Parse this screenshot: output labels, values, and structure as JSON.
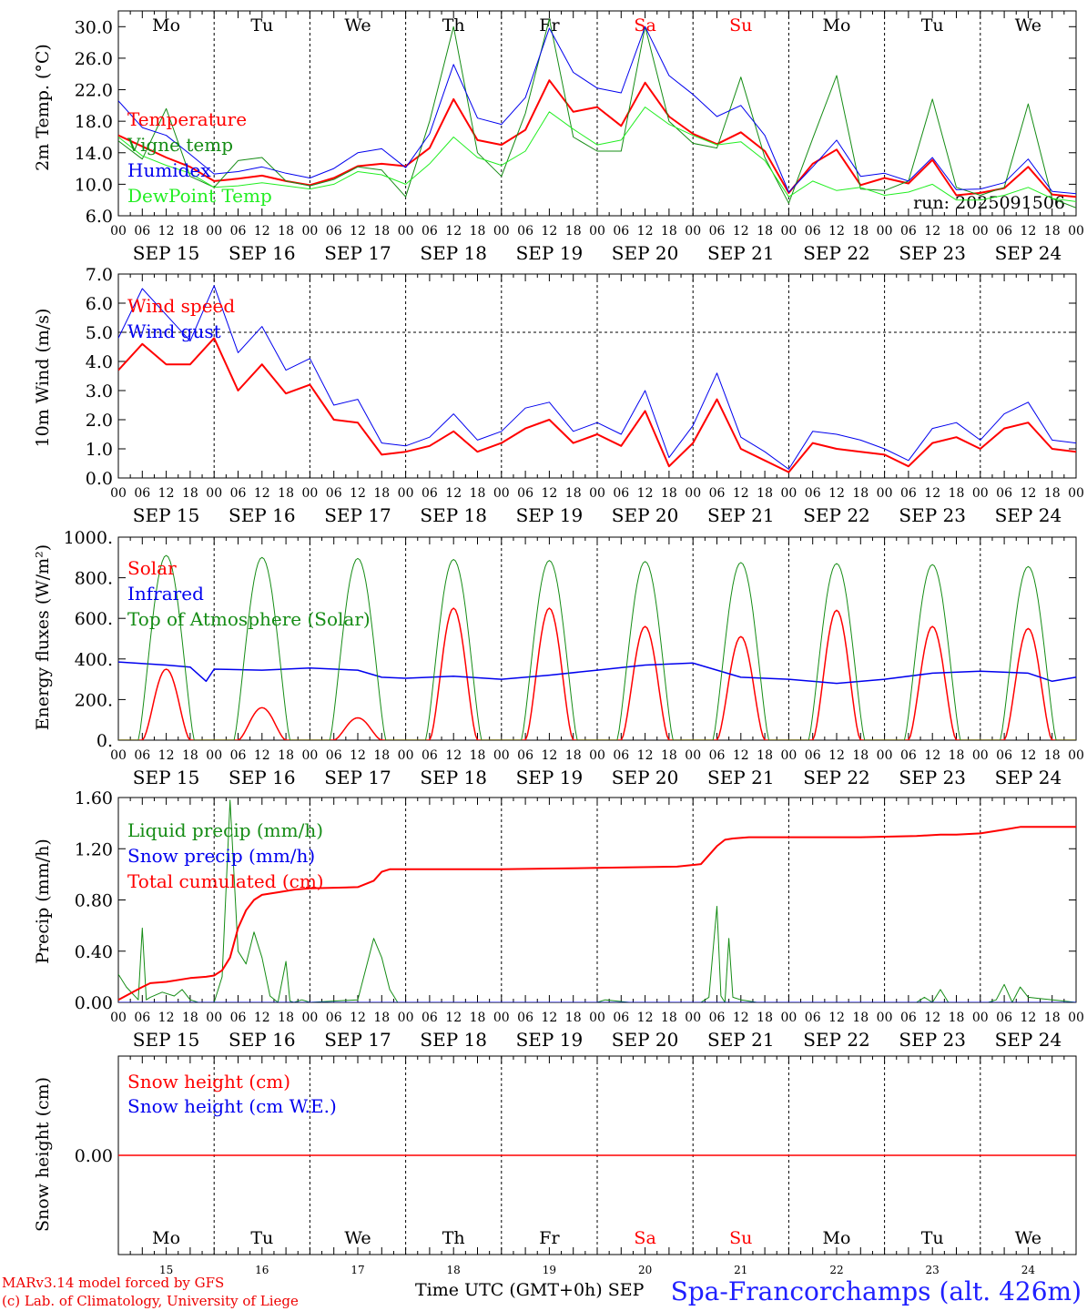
{
  "colors": {
    "red": "#ff0000",
    "blue": "#0000ee",
    "green": "#158c15",
    "lightgreen": "#22ee22",
    "blue_title": "#2020ff"
  },
  "footer": {
    "credit_line1": "MARv3.14 model forced by GFS",
    "credit_line2": "(c) Lab. of Climatology, University of Liege",
    "xaxis_title": "Time UTC (GMT+0h) SEP",
    "station": "Spa-Francorchamps (alt. 426m)"
  },
  "chart_data": [
    {
      "type": "line",
      "id": "temperature",
      "ylabel": "2m Temp. (°C)",
      "ylim": [
        6,
        32
      ],
      "yticks": [
        "6.0",
        "10.0",
        "14.0",
        "18.0",
        "22.0",
        "26.0",
        "30.0"
      ],
      "weekdays": [
        "Mo",
        "Tu",
        "We",
        "Th",
        "Fr",
        "Sa",
        "Su",
        "Mo",
        "Tu",
        "We"
      ],
      "weekend_days": [
        "Sa",
        "Su"
      ],
      "date_labels": [
        "SEP 15",
        "SEP 16",
        "SEP 17",
        "SEP 18",
        "SEP 19",
        "SEP 20",
        "SEP 21",
        "SEP 22",
        "SEP 23",
        "SEP 24"
      ],
      "hour_labels": [
        "00",
        "06",
        "12",
        "18"
      ],
      "annotation": "run: 2025091506",
      "x_unit": "hours since 2025-09-15 00 UTC",
      "series": [
        {
          "name": "Temperature",
          "color": "red",
          "width": 2,
          "x": [
            0,
            6,
            12,
            18,
            24,
            30,
            36,
            42,
            48,
            54,
            60,
            66,
            72,
            78,
            84,
            90,
            96,
            102,
            108,
            114,
            120,
            126,
            132,
            138,
            144,
            150,
            156,
            162,
            168,
            174,
            180,
            186,
            192,
            198,
            204,
            210,
            216,
            222,
            228,
            234,
            240
          ],
          "y": [
            16.2,
            14.8,
            13.4,
            12.2,
            10.4,
            10.7,
            11.1,
            10.4,
            9.9,
            10.8,
            12.3,
            12.6,
            12.3,
            14.6,
            20.8,
            15.6,
            15.0,
            16.9,
            23.2,
            19.2,
            19.8,
            17.4,
            22.9,
            18.6,
            16.4,
            15.1,
            16.6,
            14.2,
            8.9,
            12.6,
            14.4,
            9.9,
            10.8,
            10.1,
            13.1,
            8.6,
            8.9,
            9.5,
            12.2,
            8.7,
            8.4
          ]
        },
        {
          "name": "Vigne temp",
          "color": "green",
          "width": 1,
          "x": [
            0,
            6,
            12,
            18,
            24,
            30,
            36,
            42,
            48,
            54,
            60,
            66,
            72,
            78,
            84,
            90,
            96,
            102,
            108,
            114,
            120,
            126,
            132,
            138,
            144,
            150,
            156,
            162,
            168,
            174,
            180,
            186,
            192,
            198,
            204,
            210,
            216,
            222,
            228,
            234,
            240
          ],
          "y": [
            15.5,
            13.2,
            19.6,
            11.0,
            9.6,
            13.0,
            13.4,
            10.4,
            9.8,
            10.6,
            12.2,
            11.8,
            8.4,
            18.0,
            30.0,
            14.0,
            11.0,
            19.0,
            31.0,
            16.0,
            14.2,
            14.2,
            30.0,
            18.0,
            15.2,
            14.6,
            23.6,
            13.4,
            7.6,
            15.8,
            23.8,
            9.4,
            9.2,
            10.4,
            20.8,
            9.6,
            8.6,
            9.6,
            20.2,
            8.2,
            7.0
          ]
        },
        {
          "name": "Humidex",
          "color": "blue",
          "width": 1,
          "x": [
            0,
            6,
            12,
            18,
            24,
            30,
            36,
            42,
            48,
            54,
            60,
            66,
            72,
            78,
            84,
            90,
            96,
            102,
            108,
            114,
            120,
            126,
            132,
            138,
            144,
            150,
            156,
            162,
            168,
            174,
            180,
            186,
            192,
            198,
            204,
            210,
            216,
            222,
            228,
            234,
            240
          ],
          "y": [
            20.6,
            17.2,
            16.2,
            13.8,
            11.3,
            11.6,
            12.2,
            11.4,
            10.8,
            12.0,
            14.0,
            14.5,
            12.1,
            16.4,
            25.2,
            18.4,
            17.6,
            21.0,
            29.8,
            24.2,
            22.2,
            21.6,
            30.0,
            23.8,
            21.4,
            18.6,
            20.0,
            16.2,
            9.0,
            12.2,
            15.6,
            11.0,
            11.4,
            10.4,
            13.4,
            9.3,
            9.4,
            10.2,
            13.2,
            9.1,
            8.8
          ]
        },
        {
          "name": "DewPoint Temp",
          "color": "lightgreen",
          "width": 1,
          "x": [
            0,
            6,
            12,
            18,
            24,
            30,
            36,
            42,
            48,
            54,
            60,
            66,
            72,
            78,
            84,
            90,
            96,
            102,
            108,
            114,
            120,
            126,
            132,
            138,
            144,
            150,
            156,
            162,
            168,
            174,
            180,
            186,
            192,
            198,
            204,
            210,
            216,
            222,
            228,
            234,
            240
          ],
          "y": [
            16.0,
            13.6,
            12.4,
            11.4,
            9.6,
            9.8,
            10.2,
            9.8,
            9.4,
            10.0,
            11.6,
            11.2,
            10.0,
            12.6,
            16.0,
            13.4,
            12.4,
            14.2,
            19.2,
            17.0,
            15.0,
            15.6,
            19.8,
            17.6,
            16.2,
            15.0,
            15.4,
            13.0,
            8.4,
            10.4,
            9.2,
            9.6,
            8.6,
            9.0,
            10.0,
            8.0,
            8.0,
            8.6,
            9.6,
            8.2,
            7.8
          ]
        }
      ]
    },
    {
      "type": "line",
      "id": "wind",
      "ylabel": "10m Wind (m/s)",
      "ylim": [
        0,
        7
      ],
      "yticks": [
        "0.0",
        "1.0",
        "2.0",
        "3.0",
        "4.0",
        "5.0",
        "6.0",
        "7.0"
      ],
      "date_labels": [
        "SEP 15",
        "SEP 16",
        "SEP 17",
        "SEP 18",
        "SEP 19",
        "SEP 20",
        "SEP 21",
        "SEP 22",
        "SEP 23",
        "SEP 24"
      ],
      "hour_labels": [
        "00",
        "06",
        "12",
        "18"
      ],
      "reference_line": 5.0,
      "x_unit": "hours since 2025-09-15 00 UTC",
      "series": [
        {
          "name": "Wind speed",
          "color": "red",
          "width": 2,
          "x": [
            0,
            6,
            12,
            18,
            24,
            30,
            36,
            42,
            48,
            54,
            60,
            66,
            72,
            78,
            84,
            90,
            96,
            102,
            108,
            114,
            120,
            126,
            132,
            138,
            144,
            150,
            156,
            162,
            168,
            174,
            180,
            186,
            192,
            198,
            204,
            210,
            216,
            222,
            228,
            234,
            240
          ],
          "y": [
            3.7,
            4.6,
            3.9,
            3.9,
            4.8,
            3.0,
            3.9,
            2.9,
            3.2,
            2.0,
            1.9,
            0.8,
            0.9,
            1.1,
            1.6,
            0.9,
            1.2,
            1.7,
            2.0,
            1.2,
            1.5,
            1.1,
            2.3,
            0.4,
            1.2,
            2.7,
            1.0,
            0.6,
            0.2,
            1.2,
            1.0,
            0.9,
            0.8,
            0.4,
            1.2,
            1.4,
            1.0,
            1.7,
            1.9,
            1.0,
            0.9
          ]
        },
        {
          "name": "Wind gust",
          "color": "blue",
          "width": 1,
          "x": [
            0,
            6,
            12,
            18,
            24,
            30,
            36,
            42,
            48,
            54,
            60,
            66,
            72,
            78,
            84,
            90,
            96,
            102,
            108,
            114,
            120,
            126,
            132,
            138,
            144,
            150,
            156,
            162,
            168,
            174,
            180,
            186,
            192,
            198,
            204,
            210,
            216,
            222,
            228,
            234,
            240
          ],
          "y": [
            4.8,
            6.5,
            5.6,
            4.7,
            6.6,
            4.3,
            5.2,
            3.7,
            4.1,
            2.5,
            2.7,
            1.2,
            1.1,
            1.4,
            2.2,
            1.3,
            1.6,
            2.4,
            2.6,
            1.6,
            1.9,
            1.5,
            3.0,
            0.7,
            1.8,
            3.6,
            1.4,
            0.9,
            0.3,
            1.6,
            1.5,
            1.3,
            1.0,
            0.6,
            1.7,
            1.9,
            1.3,
            2.2,
            2.6,
            1.3,
            1.2
          ]
        }
      ]
    },
    {
      "type": "line",
      "id": "energy",
      "ylabel": "Energy fluxes (W/m²)",
      "ylim": [
        0,
        1000
      ],
      "yticks": [
        "0.",
        "200.",
        "400.",
        "600.",
        "800.",
        "1000."
      ],
      "date_labels": [
        "SEP 15",
        "SEP 16",
        "SEP 17",
        "SEP 18",
        "SEP 19",
        "SEP 20",
        "SEP 21",
        "SEP 22",
        "SEP 23",
        "SEP 24"
      ],
      "hour_labels": [
        "00",
        "06",
        "12",
        "18"
      ],
      "daily_peaks": {
        "top_of_atmosphere": [
          910,
          900,
          895,
          890,
          885,
          880,
          875,
          870,
          865,
          855
        ],
        "solar": [
          350,
          160,
          110,
          650,
          650,
          560,
          510,
          640,
          560,
          550
        ]
      },
      "x_unit": "hours since 2025-09-15 00 UTC",
      "series": [
        {
          "name": "Solar",
          "color": "red",
          "width": 1.5
        },
        {
          "name": "Infrared",
          "color": "blue",
          "width": 1.5,
          "x": [
            0,
            12,
            18,
            22,
            24,
            36,
            48,
            60,
            66,
            72,
            84,
            96,
            108,
            120,
            132,
            144,
            156,
            168,
            180,
            192,
            204,
            216,
            228,
            234,
            240
          ],
          "y": [
            385,
            370,
            360,
            290,
            350,
            345,
            355,
            345,
            310,
            305,
            315,
            300,
            320,
            345,
            370,
            380,
            310,
            300,
            280,
            300,
            330,
            340,
            330,
            290,
            310
          ]
        },
        {
          "name": "Top of Atmosphere (Solar)",
          "color": "green",
          "width": 1
        }
      ]
    },
    {
      "type": "line",
      "id": "precip",
      "ylabel": "Precip (mm/h)",
      "ylim": [
        0,
        1.6
      ],
      "yticks": [
        "0.00",
        "0.40",
        "0.80",
        "1.20",
        "1.60"
      ],
      "date_labels": [
        "SEP 15",
        "SEP 16",
        "SEP 17",
        "SEP 18",
        "SEP 19",
        "SEP 20",
        "SEP 21",
        "SEP 22",
        "SEP 23",
        "SEP 24"
      ],
      "hour_labels": [
        "00",
        "06",
        "12",
        "18"
      ],
      "x_unit": "hours since 2025-09-15 00 UTC",
      "series": [
        {
          "name": "Liquid precip (mm/h)",
          "color": "green",
          "width": 1,
          "x": [
            0,
            2,
            5,
            6,
            7,
            8,
            11,
            14,
            16,
            18,
            20,
            24,
            26,
            28,
            30,
            32,
            34,
            36,
            38,
            40,
            42,
            43,
            44,
            46,
            48,
            60,
            64,
            66,
            68,
            70,
            72,
            120,
            122,
            128,
            136,
            146,
            148,
            150,
            151,
            152,
            153,
            154,
            156,
            158,
            160,
            186,
            200,
            202,
            204,
            206,
            208,
            210,
            218,
            220,
            222,
            224,
            226,
            228,
            240
          ],
          "y": [
            0.22,
            0.12,
            0.02,
            0.58,
            0.02,
            0.04,
            0.08,
            0.05,
            0.1,
            0.02,
            0.0,
            0.0,
            0.2,
            1.58,
            0.4,
            0.3,
            0.55,
            0.35,
            0.05,
            0.0,
            0.32,
            0.01,
            0.0,
            0.02,
            0.0,
            0.02,
            0.5,
            0.35,
            0.1,
            0.0,
            0.0,
            0.0,
            0.02,
            0.0,
            0.0,
            0.0,
            0.04,
            0.75,
            0.05,
            0.0,
            0.5,
            0.04,
            0.02,
            0.01,
            0.0,
            0.0,
            0.0,
            0.04,
            0.0,
            0.1,
            0.0,
            0.0,
            0.0,
            0.02,
            0.14,
            0.0,
            0.12,
            0.04,
            0.0
          ]
        },
        {
          "name": "Snow precip (mm/h)",
          "color": "blue",
          "width": 1,
          "x": [
            0,
            240
          ],
          "y": [
            0.0,
            0.0
          ]
        },
        {
          "name": "Total cumulated (cm)",
          "color": "red",
          "width": 2,
          "x": [
            0,
            6,
            8,
            12,
            18,
            22,
            24,
            26,
            28,
            30,
            32,
            34,
            36,
            40,
            44,
            48,
            60,
            64,
            66,
            68,
            72,
            96,
            120,
            140,
            146,
            148,
            150,
            152,
            154,
            158,
            170,
            186,
            200,
            206,
            210,
            216,
            222,
            226,
            240
          ],
          "y": [
            0.02,
            0.12,
            0.15,
            0.16,
            0.19,
            0.2,
            0.21,
            0.25,
            0.35,
            0.58,
            0.72,
            0.8,
            0.84,
            0.86,
            0.88,
            0.89,
            0.9,
            0.95,
            1.02,
            1.04,
            1.04,
            1.04,
            1.05,
            1.06,
            1.08,
            1.15,
            1.22,
            1.27,
            1.28,
            1.29,
            1.29,
            1.29,
            1.3,
            1.31,
            1.31,
            1.32,
            1.35,
            1.37,
            1.37
          ]
        }
      ]
    },
    {
      "type": "line",
      "id": "snow",
      "ylabel": "Snow height (cm)",
      "yticks": [
        "0.00"
      ],
      "weekdays": [
        "Mo",
        "Tu",
        "We",
        "Th",
        "Fr",
        "Sa",
        "Su",
        "Mo",
        "Tu",
        "We"
      ],
      "weekend_days": [
        "Sa",
        "Su"
      ],
      "day_numbers": [
        "15",
        "16",
        "17",
        "18",
        "19",
        "20",
        "21",
        "22",
        "23",
        "24"
      ],
      "x_unit": "hours since 2025-09-15 00 UTC",
      "series": [
        {
          "name": "Snow height (cm)",
          "color": "red",
          "width": 1.5,
          "x": [
            0,
            240
          ],
          "y": [
            0.0,
            0.0
          ]
        },
        {
          "name": "Snow height (cm W.E.)",
          "color": "blue",
          "width": 1
        }
      ]
    }
  ]
}
